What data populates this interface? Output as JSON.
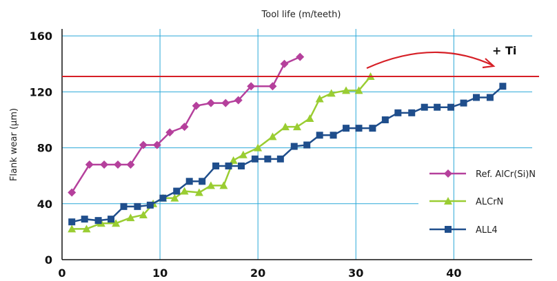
{
  "chart_data": {
    "type": "line",
    "title": "Tool life (m/teeth)",
    "xlabel": "",
    "ylabel": "Flank wear (µm)",
    "xlim": [
      0,
      48
    ],
    "ylim": [
      0,
      165
    ],
    "x_ticks": [
      0,
      10,
      20,
      30,
      40
    ],
    "y_ticks": [
      0,
      40,
      80,
      120,
      160
    ],
    "grid": true,
    "legend_position": "right",
    "series": [
      {
        "name": "Ref. AlCr(Si)N",
        "color": "#b5409c",
        "marker": "diamond",
        "x": [
          1,
          2.8,
          4.3,
          5.7,
          7,
          8.3,
          9.7,
          11,
          12.5,
          13.7,
          15.2,
          16.7,
          18,
          19.3,
          21.5,
          22.7,
          24.3
        ],
        "y": [
          48,
          68,
          68,
          68,
          68,
          82,
          82,
          91,
          95,
          110,
          112,
          112,
          114,
          124,
          124,
          140,
          145
        ]
      },
      {
        "name": "ALCrN",
        "color": "#9acd32",
        "marker": "triangle",
        "x": [
          1,
          2.5,
          4,
          5.5,
          7,
          8.3,
          9.3,
          10.3,
          11.5,
          12.5,
          14,
          15.2,
          16.5,
          17.5,
          18.5,
          20,
          21.5,
          22.8,
          24,
          25.3,
          26.3,
          27.5,
          29,
          30.3,
          31.5
        ],
        "y": [
          22,
          22,
          26,
          26,
          30,
          32,
          40,
          44,
          44,
          49,
          48,
          53,
          53,
          71,
          75,
          80,
          88,
          95,
          95,
          101,
          115,
          119,
          121,
          121,
          131
        ]
      },
      {
        "name": "ALL4",
        "color": "#1f4e8c",
        "marker": "square",
        "x": [
          1,
          2.3,
          3.7,
          5,
          6.3,
          7.7,
          9,
          10.3,
          11.7,
          13,
          14.3,
          15.7,
          17,
          18.3,
          19.7,
          21,
          22.3,
          23.7,
          25,
          26.3,
          27.7,
          29,
          30.3,
          31.7,
          33,
          34.3,
          35.7,
          37,
          38.3,
          39.7,
          41,
          42.3,
          43.7,
          45
        ],
        "y": [
          27,
          29,
          28,
          29,
          38,
          38,
          39,
          44,
          49,
          56,
          56,
          67,
          67,
          67,
          72,
          72,
          72,
          81,
          82,
          89,
          89,
          94,
          94,
          94,
          100,
          105,
          105,
          109,
          109,
          109,
          112,
          116,
          116,
          124
        ]
      }
    ],
    "reference_line": {
      "y": 131,
      "color": "#d61f26"
    },
    "annotation": {
      "text": "+ Ti",
      "color": "#d61f26"
    }
  }
}
